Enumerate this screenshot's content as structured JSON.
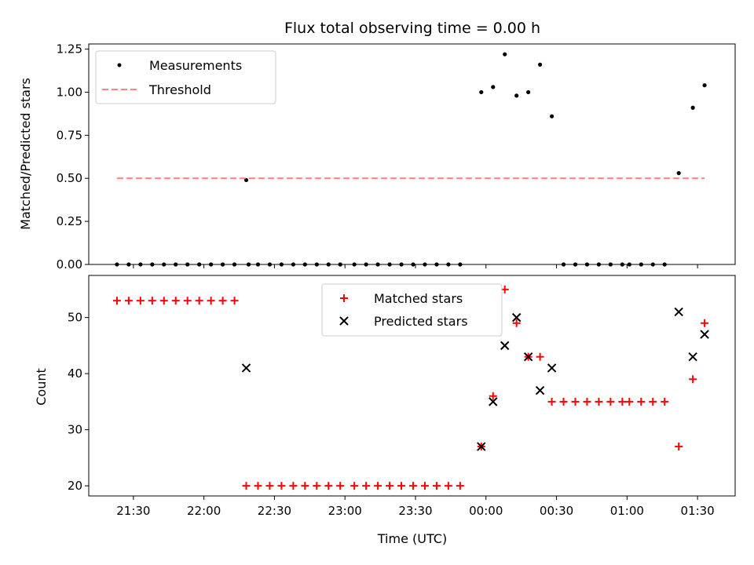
{
  "chart_data": {
    "type": "scatter",
    "title": "Flux total observing time = 0.00 h",
    "xlabel": "Time (UTC)",
    "x_tick_labels": [
      "21:30",
      "22:00",
      "22:30",
      "23:00",
      "23:30",
      "00:00",
      "00:30",
      "01:00",
      "01:30"
    ],
    "x_tick_minutes": [
      0,
      30,
      60,
      90,
      120,
      150,
      180,
      210,
      240
    ],
    "xlim_minutes": [
      -19,
      256
    ],
    "panels": [
      {
        "ylabel": "Matched/Predicted stars",
        "ylim": [
          0,
          1.28
        ],
        "y_ticks": [
          0,
          0.25,
          0.5,
          0.75,
          1.0,
          1.25
        ],
        "y_tick_labels": [
          "0.00",
          "0.25",
          "0.50",
          "0.75",
          "1.00",
          "1.25"
        ],
        "legend": {
          "location": "upper left",
          "entries": [
            "Measurements",
            "Threshold"
          ]
        },
        "series": [
          {
            "name": "Measurements",
            "marker": "dot",
            "color": "#000000",
            "x": [
              -7,
              -2,
              3,
              8,
              13,
              18,
              23,
              28,
              33,
              38,
              43,
              48,
              49,
              53,
              58,
              63,
              68,
              73,
              78,
              83,
              88,
              94,
              99,
              104,
              109,
              114,
              119,
              124,
              129,
              134,
              139,
              148,
              153,
              158,
              163,
              168,
              173,
              178,
              183,
              188,
              193,
              198,
              203,
              208,
              211,
              216,
              221,
              226,
              232,
              238,
              243
            ],
            "y": [
              0,
              0,
              0,
              0,
              0,
              0,
              0,
              0,
              0,
              0,
              0,
              0.49,
              0,
              0,
              0,
              0,
              0,
              0,
              0,
              0,
              0,
              0,
              0,
              0,
              0,
              0,
              0,
              0,
              0,
              0,
              0,
              1.0,
              1.03,
              1.22,
              0.98,
              1.0,
              1.16,
              0.86,
              0,
              0,
              0,
              0,
              0,
              0,
              0,
              0,
              0,
              0,
              0.53,
              0.91,
              1.04
            ]
          },
          {
            "name": "Threshold",
            "type": "line",
            "style": "dashed",
            "color": "#ff8080",
            "x": [
              -7,
              243
            ],
            "y": [
              0.5,
              0.5
            ]
          }
        ]
      },
      {
        "ylabel": "Count",
        "ylim": [
          18.2,
          57.5
        ],
        "y_ticks": [
          20,
          30,
          40,
          50
        ],
        "y_tick_labels": [
          "20",
          "30",
          "40",
          "50"
        ],
        "legend": {
          "location": "upper center",
          "entries": [
            "Matched stars",
            "Predicted stars"
          ]
        },
        "series": [
          {
            "name": "Matched stars",
            "marker": "plus",
            "color": "#ff0000",
            "x": [
              -7,
              -2,
              3,
              8,
              13,
              18,
              23,
              28,
              33,
              38,
              43,
              48,
              53,
              58,
              63,
              68,
              73,
              78,
              83,
              88,
              94,
              99,
              104,
              109,
              114,
              119,
              124,
              129,
              134,
              139,
              148,
              153,
              158,
              163,
              168,
              173,
              178,
              183,
              188,
              193,
              198,
              203,
              208,
              211,
              216,
              221,
              226,
              232,
              238,
              243
            ],
            "y": [
              53,
              53,
              53,
              53,
              53,
              53,
              53,
              53,
              53,
              53,
              53,
              20,
              20,
              20,
              20,
              20,
              20,
              20,
              20,
              20,
              20,
              20,
              20,
              20,
              20,
              20,
              20,
              20,
              20,
              20,
              27,
              36,
              55,
              49,
              43,
              43,
              35,
              35,
              35,
              35,
              35,
              35,
              35,
              35,
              35,
              35,
              35,
              27,
              39,
              49
            ]
          },
          {
            "name": "Predicted stars",
            "marker": "x",
            "color": "#000000",
            "x": [
              48,
              148,
              153,
              158,
              163,
              168,
              173,
              178,
              232,
              238,
              243
            ],
            "y": [
              41,
              27,
              35,
              45,
              50,
              43,
              37,
              41,
              51,
              43,
              47
            ]
          }
        ]
      }
    ]
  }
}
